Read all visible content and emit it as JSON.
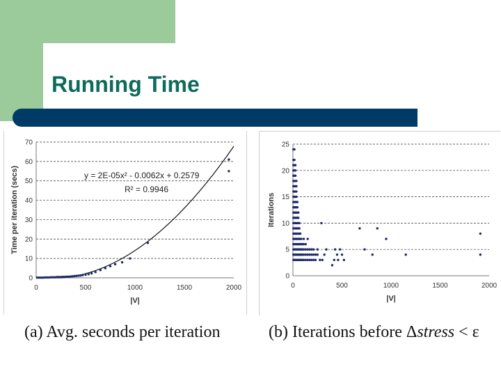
{
  "slide": {
    "title": "Running Time",
    "colors": {
      "title": "#0e6b5c",
      "bar": "#003a66",
      "accent_block": "#9bcb9a",
      "points": "#1f2a6b"
    }
  },
  "chart_data": [
    {
      "type": "scatter",
      "caption": "(a)  Avg. seconds per iteration",
      "xlabel": "|V|",
      "ylabel": "Time per iteration (secs)",
      "xlim": [
        0,
        2000
      ],
      "ylim": [
        0,
        70
      ],
      "xticks": [
        0,
        500,
        1000,
        1500,
        2000
      ],
      "yticks": [
        0,
        10,
        20,
        30,
        40,
        50,
        60,
        70
      ],
      "grid": "horizontal dashed",
      "trendline": {
        "type": "polynomial",
        "equation": "y = 2E-05x² - 0.0062x + 0.2579",
        "r2_label": "R² = 0.9946",
        "coefficients": [
          2e-05,
          -0.0062,
          0.2579
        ]
      },
      "series": [
        {
          "x": [
            10,
            30,
            50,
            70,
            90,
            110,
            130,
            150,
            170,
            190,
            210,
            230,
            250,
            270,
            290,
            310,
            330,
            350,
            370,
            390,
            410,
            430,
            450,
            470,
            500,
            530,
            560,
            600,
            650,
            700,
            750,
            800,
            870,
            950,
            1130,
            1950,
            1950
          ],
          "y": [
            0.1,
            0.1,
            0.1,
            0.1,
            0.2,
            0.2,
            0.2,
            0.3,
            0.3,
            0.3,
            0.4,
            0.4,
            0.4,
            0.5,
            0.5,
            0.6,
            0.6,
            0.7,
            0.8,
            0.9,
            1.0,
            1.1,
            1.2,
            1.4,
            1.6,
            1.9,
            2.3,
            3,
            4,
            5,
            6,
            7,
            8,
            10,
            18,
            61,
            55
          ]
        }
      ]
    },
    {
      "type": "scatter",
      "caption_parts": [
        "(b)  Iterations before ",
        "Δ",
        "stress",
        " < ε"
      ],
      "xlabel": "|V|",
      "ylabel": "Iterations",
      "xlim": [
        0,
        2000
      ],
      "ylim": [
        0,
        25
      ],
      "xticks": [
        0,
        500,
        1000,
        1500,
        2000
      ],
      "yticks": [
        0,
        5,
        10,
        15,
        20,
        25
      ],
      "grid": "horizontal dashed",
      "series": [
        {
          "x": [
            5,
            5,
            5,
            5,
            5,
            5,
            5,
            5,
            5,
            5,
            5,
            5,
            5,
            5,
            5,
            5,
            5,
            5,
            5,
            5,
            5,
            15,
            15,
            15,
            15,
            15,
            15,
            15,
            15,
            15,
            15,
            15,
            15,
            15,
            15,
            15,
            15,
            15,
            15,
            15,
            15,
            15,
            25,
            25,
            25,
            25,
            25,
            25,
            25,
            25,
            25,
            25,
            25,
            25,
            25,
            25,
            25,
            25,
            25,
            25,
            25,
            35,
            35,
            35,
            35,
            35,
            35,
            35,
            35,
            35,
            35,
            35,
            35,
            35,
            35,
            35,
            35,
            45,
            45,
            45,
            45,
            45,
            45,
            45,
            45,
            45,
            45,
            45,
            45,
            55,
            55,
            55,
            55,
            55,
            55,
            55,
            55,
            55,
            55,
            65,
            65,
            65,
            65,
            65,
            65,
            65,
            65,
            75,
            75,
            75,
            75,
            75,
            75,
            85,
            85,
            85,
            85,
            85,
            95,
            95,
            95,
            95,
            110,
            110,
            110,
            110,
            110,
            130,
            130,
            130,
            130,
            150,
            150,
            150,
            150,
            170,
            170,
            170,
            190,
            190,
            190,
            210,
            210,
            210,
            230,
            230,
            250,
            250,
            275,
            300,
            290,
            320,
            340,
            400,
            420,
            430,
            450,
            460,
            480,
            500,
            520,
            680,
            730,
            810,
            860,
            950,
            1150,
            1910,
            1910
          ],
          "y": [
            3,
            4,
            5,
            6,
            7,
            8,
            9,
            10,
            11,
            12,
            13,
            14,
            15,
            16,
            17,
            18,
            19,
            20,
            22,
            24,
            21,
            3,
            4,
            5,
            6,
            7,
            8,
            9,
            10,
            11,
            12,
            13,
            14,
            15,
            16,
            17,
            18,
            19,
            20,
            21,
            22,
            24,
            3,
            4,
            5,
            6,
            7,
            8,
            9,
            10,
            11,
            12,
            13,
            14,
            15,
            16,
            17,
            18,
            19,
            20,
            21,
            3,
            4,
            5,
            6,
            7,
            8,
            9,
            10,
            11,
            12,
            13,
            14,
            15,
            16,
            17,
            18,
            3,
            4,
            5,
            6,
            7,
            8,
            9,
            10,
            11,
            12,
            13,
            14,
            3,
            4,
            5,
            6,
            7,
            8,
            9,
            10,
            11,
            12,
            3,
            4,
            5,
            6,
            7,
            8,
            9,
            10,
            3,
            4,
            5,
            6,
            7,
            8,
            3,
            4,
            5,
            6,
            7,
            3,
            4,
            5,
            6,
            3,
            4,
            5,
            6,
            7,
            3,
            4,
            5,
            6,
            3,
            4,
            5,
            7,
            3,
            4,
            5,
            3,
            4,
            5,
            3,
            4,
            5,
            3,
            4,
            4,
            5,
            3,
            3,
            10,
            4,
            5,
            2,
            3,
            5,
            4,
            3,
            5,
            4,
            3,
            9,
            5,
            4,
            9,
            7,
            4,
            8,
            4
          ]
        }
      ]
    }
  ]
}
